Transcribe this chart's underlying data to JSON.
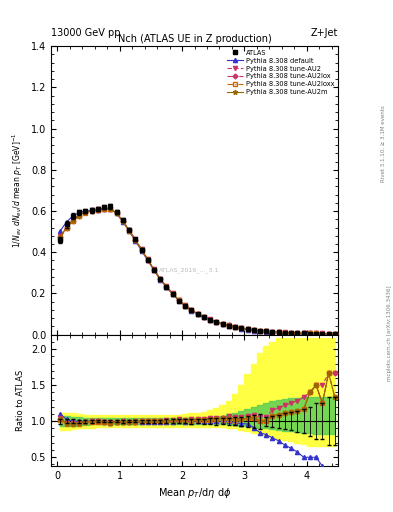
{
  "title_left": "13000 GeV pp",
  "title_right": "Z+Jet",
  "plot_title": "Nch (ATLAS UE in Z production)",
  "right_label_top": "Rivet 3.1.10, ≥ 3.1M events",
  "right_label_bottom": "mcplots.cern.ch [arXiv:1306.3436]",
  "watermark": "ATLAS_2019_..._3.1",
  "x_data": [
    0.05,
    0.15,
    0.25,
    0.35,
    0.45,
    0.55,
    0.65,
    0.75,
    0.85,
    0.95,
    1.05,
    1.15,
    1.25,
    1.35,
    1.45,
    1.55,
    1.65,
    1.75,
    1.85,
    1.95,
    2.05,
    2.15,
    2.25,
    2.35,
    2.45,
    2.55,
    2.65,
    2.75,
    2.85,
    2.95,
    3.05,
    3.15,
    3.25,
    3.35,
    3.45,
    3.55,
    3.65,
    3.75,
    3.85,
    3.95,
    4.05,
    4.15,
    4.25,
    4.35,
    4.45
  ],
  "atlas_y": [
    0.46,
    0.535,
    0.575,
    0.595,
    0.6,
    0.603,
    0.608,
    0.618,
    0.622,
    0.595,
    0.555,
    0.51,
    0.462,
    0.413,
    0.364,
    0.315,
    0.27,
    0.232,
    0.197,
    0.165,
    0.14,
    0.118,
    0.099,
    0.084,
    0.071,
    0.06,
    0.051,
    0.043,
    0.037,
    0.031,
    0.026,
    0.022,
    0.019,
    0.016,
    0.013,
    0.011,
    0.009,
    0.008,
    0.007,
    0.006,
    0.005,
    0.004,
    0.004,
    0.003,
    0.003
  ],
  "atlas_err": [
    0.015,
    0.015,
    0.015,
    0.012,
    0.012,
    0.012,
    0.01,
    0.01,
    0.01,
    0.01,
    0.01,
    0.009,
    0.008,
    0.008,
    0.007,
    0.007,
    0.006,
    0.006,
    0.005,
    0.005,
    0.004,
    0.004,
    0.003,
    0.003,
    0.003,
    0.003,
    0.002,
    0.002,
    0.002,
    0.002,
    0.002,
    0.002,
    0.002,
    0.001,
    0.001,
    0.001,
    0.001,
    0.001,
    0.001,
    0.001,
    0.001,
    0.001,
    0.001,
    0.001,
    0.001
  ],
  "default_y": [
    0.505,
    0.548,
    0.576,
    0.593,
    0.6,
    0.603,
    0.607,
    0.612,
    0.61,
    0.588,
    0.549,
    0.503,
    0.456,
    0.408,
    0.36,
    0.312,
    0.267,
    0.23,
    0.196,
    0.165,
    0.139,
    0.117,
    0.099,
    0.084,
    0.071,
    0.06,
    0.051,
    0.043,
    0.036,
    0.03,
    0.025,
    0.02,
    0.016,
    0.013,
    0.01,
    0.008,
    0.006,
    0.005,
    0.004,
    0.003,
    0.0025,
    0.002,
    0.0015,
    0.001,
    0.001
  ],
  "au2_y": [
    0.478,
    0.525,
    0.558,
    0.582,
    0.596,
    0.603,
    0.608,
    0.614,
    0.612,
    0.591,
    0.553,
    0.508,
    0.462,
    0.415,
    0.366,
    0.317,
    0.272,
    0.235,
    0.2,
    0.169,
    0.143,
    0.121,
    0.102,
    0.087,
    0.074,
    0.063,
    0.053,
    0.046,
    0.039,
    0.033,
    0.028,
    0.024,
    0.02,
    0.017,
    0.015,
    0.013,
    0.011,
    0.01,
    0.009,
    0.008,
    0.007,
    0.006,
    0.006,
    0.005,
    0.005
  ],
  "au2lox_y": [
    0.473,
    0.52,
    0.554,
    0.578,
    0.594,
    0.601,
    0.606,
    0.612,
    0.61,
    0.589,
    0.551,
    0.506,
    0.46,
    0.413,
    0.364,
    0.315,
    0.27,
    0.233,
    0.198,
    0.167,
    0.141,
    0.119,
    0.101,
    0.086,
    0.073,
    0.062,
    0.053,
    0.045,
    0.038,
    0.032,
    0.027,
    0.023,
    0.019,
    0.016,
    0.014,
    0.012,
    0.01,
    0.009,
    0.008,
    0.007,
    0.007,
    0.006,
    0.005,
    0.005,
    0.005
  ],
  "au2loxx_y": [
    0.471,
    0.518,
    0.552,
    0.576,
    0.592,
    0.6,
    0.605,
    0.611,
    0.609,
    0.588,
    0.55,
    0.505,
    0.459,
    0.412,
    0.363,
    0.314,
    0.269,
    0.232,
    0.197,
    0.166,
    0.14,
    0.119,
    0.1,
    0.085,
    0.072,
    0.062,
    0.052,
    0.044,
    0.037,
    0.032,
    0.027,
    0.023,
    0.019,
    0.016,
    0.014,
    0.012,
    0.01,
    0.009,
    0.008,
    0.007,
    0.007,
    0.006,
    0.005,
    0.005,
    0.004
  ],
  "au2m_y": [
    0.475,
    0.522,
    0.556,
    0.58,
    0.595,
    0.602,
    0.607,
    0.613,
    0.611,
    0.59,
    0.552,
    0.507,
    0.461,
    0.414,
    0.365,
    0.316,
    0.271,
    0.234,
    0.199,
    0.168,
    0.142,
    0.12,
    0.101,
    0.086,
    0.073,
    0.062,
    0.053,
    0.045,
    0.038,
    0.032,
    0.027,
    0.023,
    0.019,
    0.016,
    0.014,
    0.012,
    0.01,
    0.009,
    0.008,
    0.007,
    0.007,
    0.006,
    0.005,
    0.005,
    0.004
  ],
  "yellow_band_lo": [
    0.88,
    0.88,
    0.89,
    0.9,
    0.91,
    0.91,
    0.92,
    0.92,
    0.92,
    0.92,
    0.92,
    0.92,
    0.92,
    0.92,
    0.92,
    0.92,
    0.92,
    0.92,
    0.92,
    0.92,
    0.92,
    0.92,
    0.92,
    0.92,
    0.92,
    0.92,
    0.92,
    0.91,
    0.9,
    0.88,
    0.86,
    0.84,
    0.82,
    0.8,
    0.78,
    0.76,
    0.74,
    0.72,
    0.7,
    0.68,
    0.66,
    0.65,
    0.65,
    0.65,
    0.65
  ],
  "yellow_band_hi": [
    1.12,
    1.12,
    1.11,
    1.1,
    1.09,
    1.09,
    1.08,
    1.08,
    1.08,
    1.08,
    1.08,
    1.08,
    1.08,
    1.08,
    1.08,
    1.08,
    1.08,
    1.08,
    1.08,
    1.09,
    1.1,
    1.11,
    1.12,
    1.13,
    1.15,
    1.18,
    1.22,
    1.28,
    1.38,
    1.5,
    1.65,
    1.8,
    1.95,
    2.05,
    2.1,
    2.15,
    2.15,
    2.15,
    2.15,
    2.15,
    2.15,
    2.15,
    2.15,
    2.15,
    2.15
  ],
  "green_band_lo": [
    0.93,
    0.93,
    0.94,
    0.945,
    0.95,
    0.955,
    0.958,
    0.96,
    0.96,
    0.96,
    0.96,
    0.96,
    0.96,
    0.96,
    0.96,
    0.96,
    0.96,
    0.96,
    0.96,
    0.96,
    0.96,
    0.96,
    0.96,
    0.96,
    0.96,
    0.96,
    0.96,
    0.955,
    0.95,
    0.94,
    0.93,
    0.92,
    0.91,
    0.9,
    0.89,
    0.88,
    0.87,
    0.86,
    0.85,
    0.84,
    0.83,
    0.82,
    0.82,
    0.82,
    0.82
  ],
  "green_band_hi": [
    1.07,
    1.07,
    1.06,
    1.055,
    1.05,
    1.045,
    1.042,
    1.04,
    1.04,
    1.04,
    1.04,
    1.04,
    1.04,
    1.04,
    1.04,
    1.04,
    1.04,
    1.04,
    1.04,
    1.04,
    1.04,
    1.042,
    1.044,
    1.048,
    1.055,
    1.065,
    1.078,
    1.095,
    1.115,
    1.14,
    1.17,
    1.2,
    1.23,
    1.255,
    1.275,
    1.295,
    1.31,
    1.32,
    1.325,
    1.33,
    1.33,
    1.33,
    1.33,
    1.33,
    1.33
  ],
  "color_atlas": "#000000",
  "color_default": "#3333cc",
  "color_au2": "#cc3366",
  "color_au2lox": "#cc3366",
  "color_au2loxx": "#cc6600",
  "color_au2m": "#996600",
  "color_yellow": "#ffff44",
  "color_green": "#55cc55",
  "xlim": [
    -0.1,
    4.5
  ],
  "ylim_main": [
    0.0,
    1.4
  ],
  "ylim_ratio": [
    0.38,
    2.2
  ],
  "yticks_main": [
    0.0,
    0.2,
    0.4,
    0.6,
    0.8,
    1.0,
    1.2,
    1.4
  ],
  "yticks_ratio": [
    0.5,
    1.0,
    1.5,
    2.0
  ]
}
